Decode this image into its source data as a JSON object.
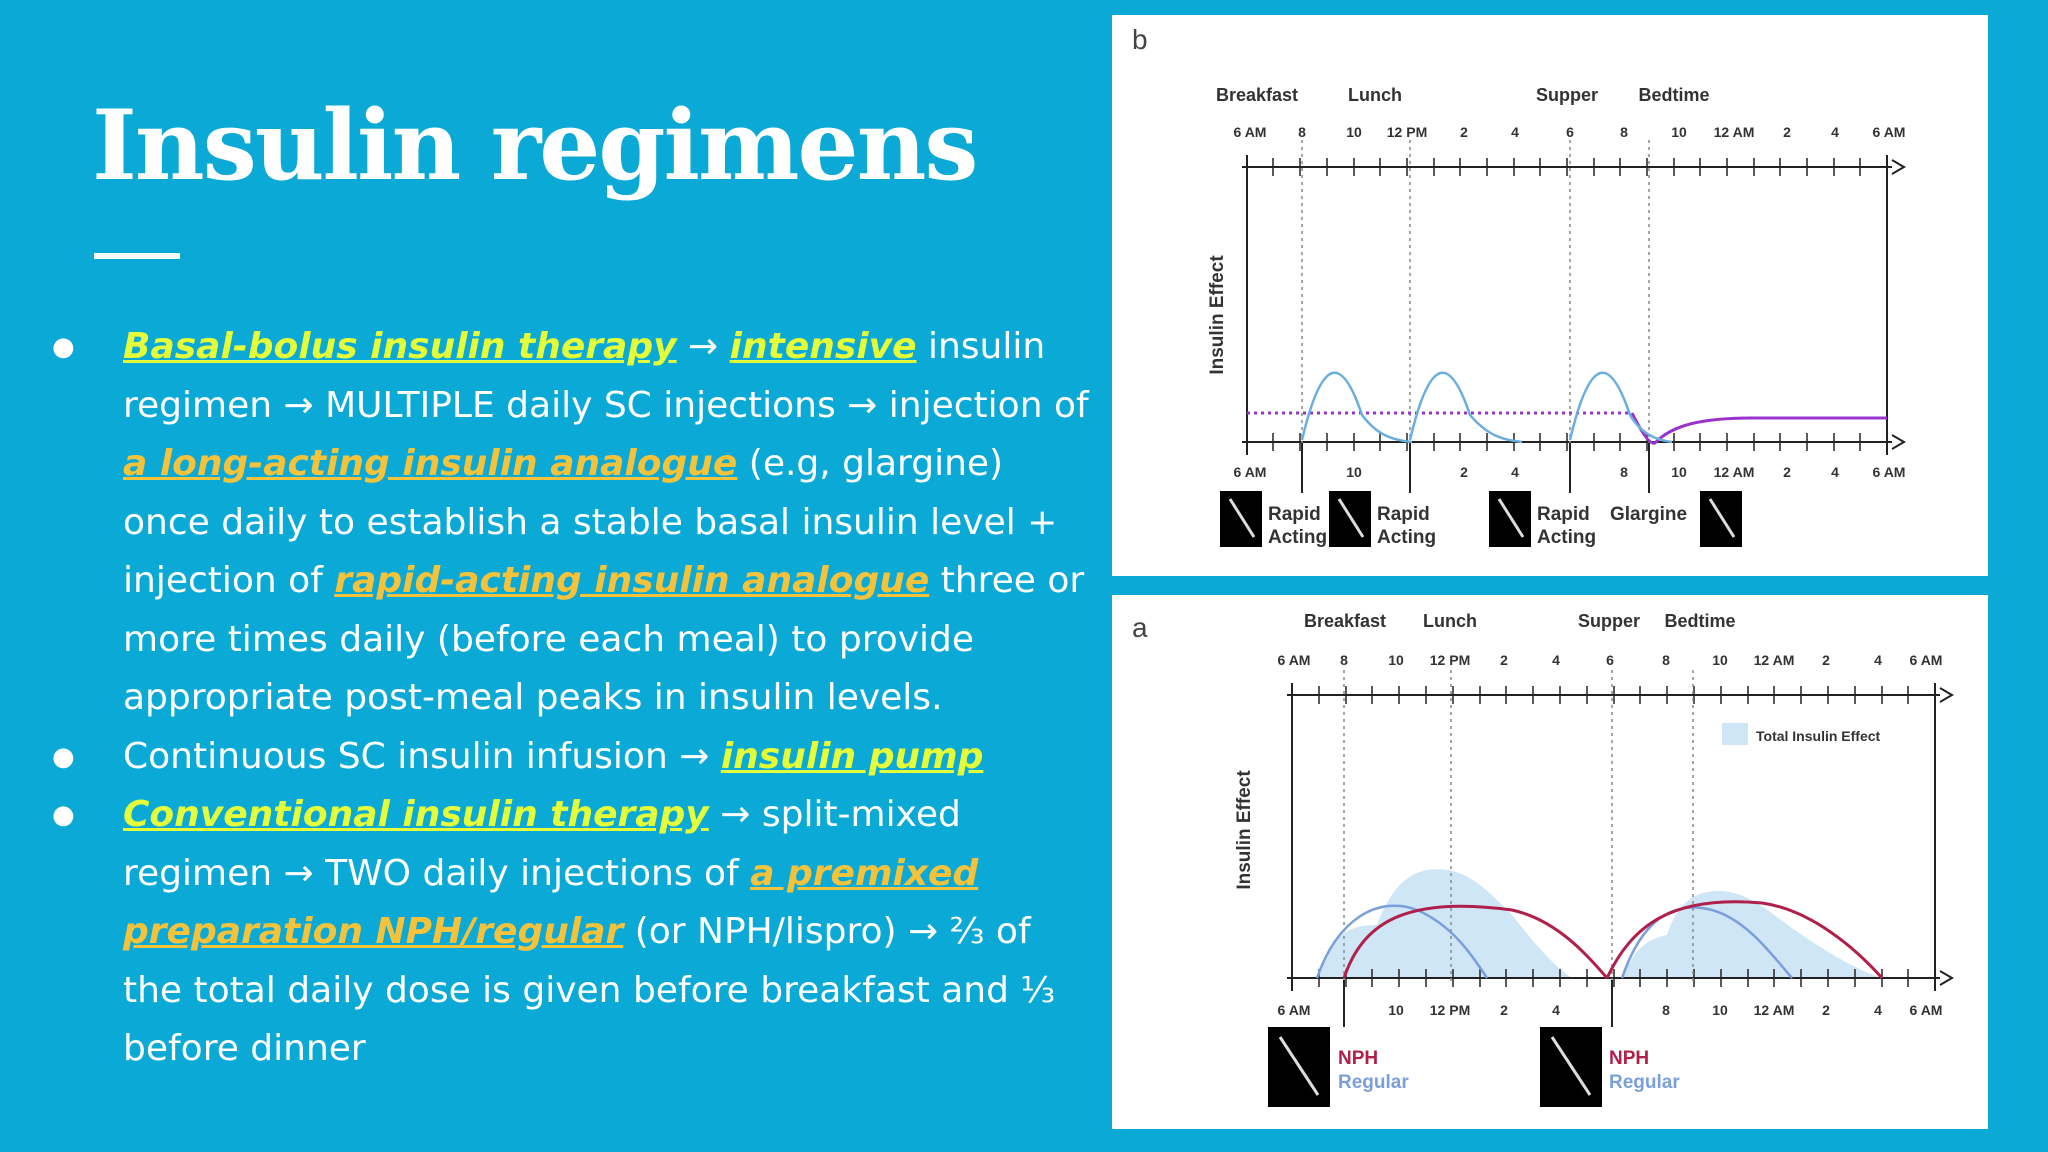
{
  "slide": {
    "title": "Insulin regimens",
    "colors": {
      "background": "#0aa9d6",
      "text": "#ffffff",
      "highlight_yellow": "#e4ff3a",
      "highlight_orange": "#f5c33b"
    }
  },
  "bullets": [
    {
      "parts": [
        {
          "text": "Basal-bolus insulin therapy",
          "style": "hl-yellow"
        },
        {
          "text": " → ",
          "style": "plain"
        },
        {
          "text": "intensive",
          "style": "hl-yellow"
        },
        {
          "text": " insulin regimen → MULTIPLE daily SC injections → injection of ",
          "style": "plain"
        },
        {
          "text": "a long-acting insulin analogue",
          "style": "hl-orange"
        },
        {
          "text": " (e.g, glargine) once daily to establish a stable basal insulin level + injection of ",
          "style": "plain"
        },
        {
          "text": "rapid-acting insulin analogue",
          "style": "hl-orange"
        },
        {
          "text": " three or more times daily (before each meal) to provide appropriate post-meal peaks in insulin levels.",
          "style": "plain"
        }
      ]
    },
    {
      "parts": [
        {
          "text": "Continuous SC insulin infusion → ",
          "style": "plain"
        },
        {
          "text": "insulin pump",
          "style": "hl-yellow"
        }
      ]
    },
    {
      "parts": [
        {
          "text": "Conventional insulin therapy",
          "style": "hl-yellow"
        },
        {
          "text": " → split-mixed regimen → TWO daily injections of ",
          "style": "plain"
        },
        {
          "text": "a premixed preparation NPH/regular",
          "style": "hl-orange"
        },
        {
          "text": " (or NPH/lispro) → ⅔ of the total daily dose is given before breakfast and ⅓ before dinner",
          "style": "plain"
        }
      ]
    }
  ],
  "figure_b": {
    "letter": "b",
    "ylabel": "Insulin Effect",
    "events": [
      "Breakfast",
      "Lunch",
      "Supper",
      "Bedtime"
    ],
    "top_ticks": [
      "6 AM",
      "8",
      "10",
      "12 PM",
      "2",
      "4",
      "6",
      "8",
      "10",
      "12 AM",
      "2",
      "4",
      "6 AM"
    ],
    "bottom_ticks": [
      "6 AM",
      "10",
      "2",
      "4",
      "8",
      "10",
      "12 AM",
      "2",
      "4",
      "6 AM"
    ],
    "injections": [
      {
        "line1": "Rapid",
        "line2": "Acting"
      },
      {
        "line1": "Rapid",
        "line2": "Acting"
      },
      {
        "line1": "Rapid",
        "line2": "Acting"
      },
      {
        "line1": "Glargine",
        "line2": ""
      }
    ],
    "colors": {
      "rapid": "#6aaee0",
      "glargine": "#9933cc"
    }
  },
  "figure_a": {
    "letter": "a",
    "ylabel": "Insulin Effect",
    "events": [
      "Breakfast",
      "Lunch",
      "Supper",
      "Bedtime"
    ],
    "top_ticks": [
      "6 AM",
      "8",
      "10",
      "12 PM",
      "2",
      "4",
      "6",
      "8",
      "10",
      "12 AM",
      "2",
      "4",
      "6 AM"
    ],
    "bottom_ticks": [
      "6 AM",
      "10",
      "12 PM",
      "2",
      "4",
      "8",
      "10",
      "12 AM",
      "2",
      "4",
      "6 AM"
    ],
    "legend": "Total Insulin Effect",
    "injections": [
      {
        "line1": "NPH",
        "line2": "Regular"
      },
      {
        "line1": "NPH",
        "line2": "Regular"
      }
    ],
    "colors": {
      "nph": "#b0204a",
      "regular": "#7a9fdc",
      "total": "#cfe6f7"
    }
  }
}
